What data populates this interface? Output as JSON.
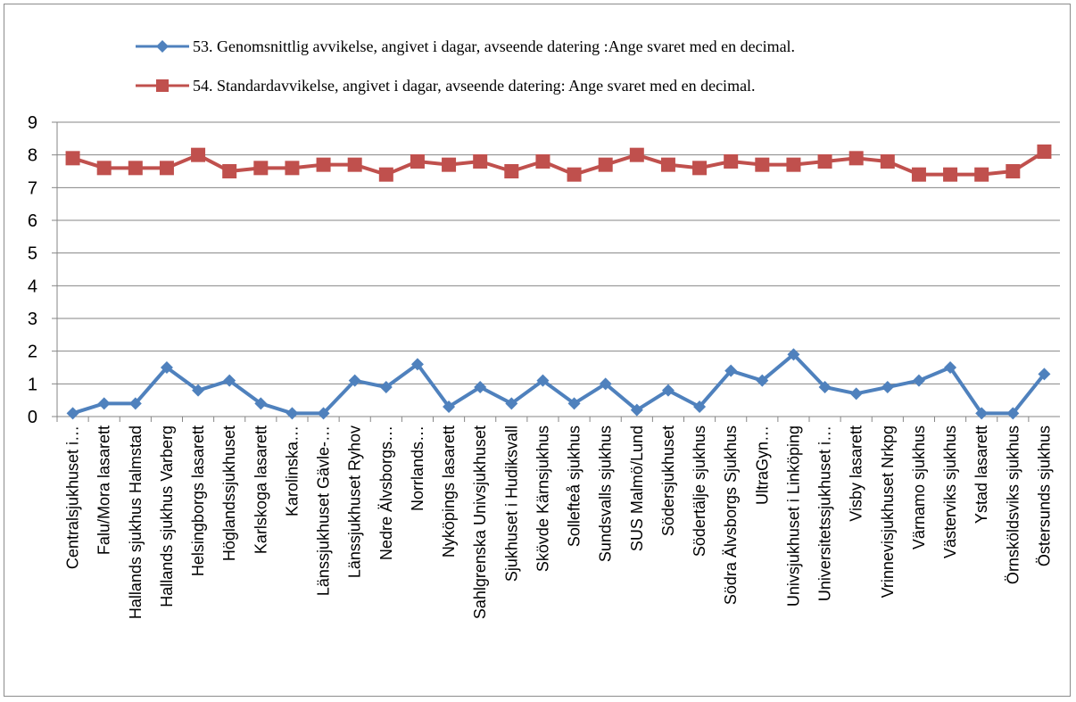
{
  "chart_data": {
    "type": "line",
    "title": "",
    "xlabel": "",
    "ylabel": "",
    "ylim": [
      0,
      9
    ],
    "yticks": [
      "0",
      "1",
      "2",
      "3",
      "4",
      "5",
      "6",
      "7",
      "8",
      "9"
    ],
    "grid": "horizontal",
    "legend_position": "top",
    "categories": [
      "Centralsjukhuset i…",
      "Falu/Mora lasarett",
      "Hallands sjukhus Halmstad",
      "Hallands sjukhus Varberg",
      "Helsingborgs lasarett",
      "Höglandssjukhuset",
      "Karlskoga lasarett",
      "Karolinska…",
      "Länssjukhuset Gävle-…",
      "Länssjukhuset Ryhov",
      "Nedre Älvsborgs…",
      "Norrlands…",
      "Nyköpings lasarett",
      "Sahlgrenska Univsjukhuset",
      "Sjukhuset i Hudiksvall",
      "Skövde Kärnsjukhus",
      "Sollefteå sjukhus",
      "Sundsvalls sjukhus",
      "SUS Malmö/Lund",
      "Södersjukhuset",
      "Södertälje sjukhus",
      "Södra Älvsborgs Sjukhus",
      "UltraGyn…",
      "Univsjukhuset i Linköping",
      "Universitetssjukhuset i…",
      "Visby lasarett",
      "Vrinnevisjukhuset Nrkpg",
      "Värnamo sjukhus",
      "Västerviks sjukhus",
      "Ystad lasarett",
      "Örnsköldsviks sjukhus",
      "Östersunds sjukhus"
    ],
    "series": [
      {
        "name": "53. Genomsnittlig avvikelse, angivet i dagar, avseende datering :Ange svaret med en decimal.",
        "color": "#4f81bd",
        "marker": "diamond",
        "values": [
          0.1,
          0.4,
          0.4,
          1.5,
          0.8,
          1.1,
          0.4,
          0.1,
          0.1,
          1.1,
          0.9,
          1.6,
          0.3,
          0.9,
          0.4,
          1.1,
          0.4,
          1.0,
          0.2,
          0.8,
          0.3,
          1.4,
          1.1,
          1.9,
          0.9,
          0.7,
          0.9,
          1.1,
          1.5,
          0.1,
          0.1,
          1.3
        ]
      },
      {
        "name": "54. Standardavvikelse, angivet i dagar, avseende datering: Ange svaret med en decimal.",
        "color": "#c0504d",
        "marker": "square",
        "values": [
          7.9,
          7.6,
          7.6,
          7.6,
          8.0,
          7.5,
          7.6,
          7.6,
          7.7,
          7.7,
          7.4,
          7.8,
          7.7,
          7.8,
          7.5,
          7.8,
          7.4,
          7.7,
          8.0,
          7.7,
          7.6,
          7.8,
          7.7,
          7.7,
          7.8,
          7.9,
          7.8,
          7.4,
          7.4,
          7.4,
          7.5,
          8.1
        ]
      }
    ]
  }
}
